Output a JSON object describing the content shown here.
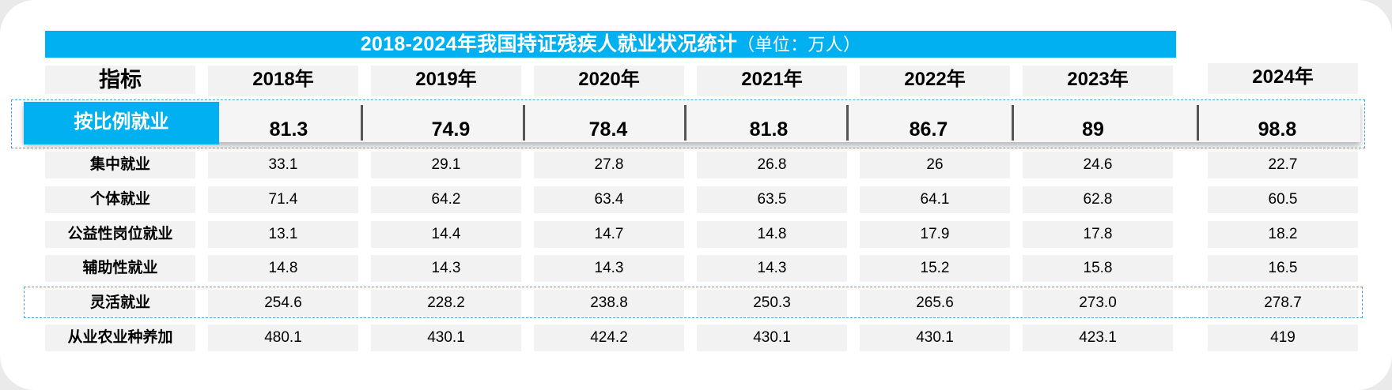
{
  "chart_data": {
    "type": "table",
    "title": "2018-2024年我国持证残疾人就业状况统计",
    "unit_note": "（单位：万人）",
    "header_label": "指标",
    "columns": [
      "2018年",
      "2019年",
      "2020年",
      "2021年",
      "2022年",
      "2023年",
      "2024年"
    ],
    "rows": [
      {
        "label": "按比例就业",
        "values": [
          "81.3",
          "74.9",
          "78.4",
          "81.8",
          "86.7",
          "89",
          "98.8"
        ]
      },
      {
        "label": "集中就业",
        "values": [
          "33.1",
          "29.1",
          "27.8",
          "26.8",
          "26",
          "24.6",
          "22.7"
        ]
      },
      {
        "label": "个体就业",
        "values": [
          "71.4",
          "64.2",
          "63.4",
          "63.5",
          "64.1",
          "62.8",
          "60.5"
        ]
      },
      {
        "label": "公益性岗位就业",
        "values": [
          "13.1",
          "14.4",
          "14.7",
          "14.8",
          "17.9",
          "17.8",
          "18.2"
        ]
      },
      {
        "label": "辅助性就业",
        "values": [
          "14.8",
          "14.3",
          "14.3",
          "14.3",
          "15.2",
          "15.8",
          "16.5"
        ]
      },
      {
        "label": "灵活就业",
        "values": [
          "254.6",
          "228.2",
          "238.8",
          "250.3",
          "265.6",
          "273.0",
          "278.7"
        ]
      },
      {
        "label": "从业农业种养加",
        "values": [
          "480.1",
          "430.1",
          "424.2",
          "430.1",
          "430.1",
          "423.1",
          "419"
        ]
      }
    ],
    "highlighted_rows": [
      "按比例就业",
      "灵活就业"
    ],
    "colors": {
      "accent": "#00b0f0",
      "cell_bg": "#f2f2f2",
      "dash": "#4aa3d6",
      "page_bg": "#ffffff"
    }
  }
}
